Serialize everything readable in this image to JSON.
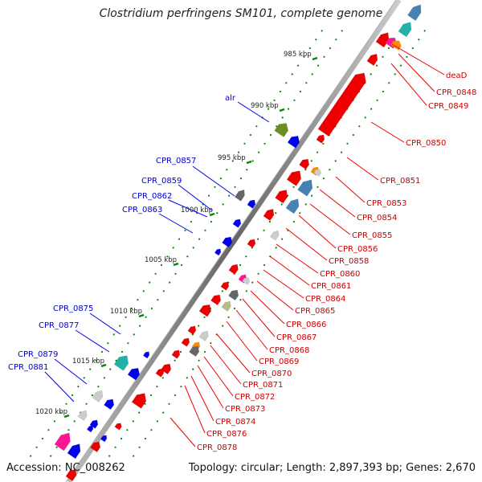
{
  "title": "Clostridium perfringens SM101, complete genome",
  "accession": "Accession: NC_008262",
  "footer": "Topology: circular; Length: 2,897,393 bp; Genes: 2,670",
  "colors": {
    "forward": "#0000ee",
    "reverse": "#ee0000",
    "backbone": "#888888",
    "label_red": "#cc0000",
    "label_blue": "#0000cc",
    "tick": "#008800"
  },
  "ticks": [
    "985 kbp",
    "990 kbp",
    "995 kbp",
    "1000 kbp",
    "1005 kbp",
    "1010 kbp",
    "1015 kbp",
    "1020 kbp"
  ],
  "left_labels": [
    "alr",
    "CPR_0857",
    "CPR_0859",
    "CPR_0862",
    "CPR_0863",
    "CPR_0875",
    "CPR_0877",
    "CPR_0879",
    "CPR_0881"
  ],
  "right_labels": [
    "deaD",
    "CPR_0848",
    "CPR_0849",
    "CPR_0850",
    "CPR_0851",
    "CPR_0853",
    "CPR_0854",
    "CPR_0855",
    "CPR_0856",
    "CPR_0858",
    "CPR_0860",
    "CPR_0861",
    "CPR_0864",
    "CPR_0865",
    "CPR_0866",
    "CPR_0867",
    "CPR_0868",
    "CPR_0869",
    "CPR_0870",
    "CPR_0871",
    "CPR_0872",
    "CPR_0873",
    "CPR_0874",
    "CPR_0876",
    "CPR_0878"
  ]
}
